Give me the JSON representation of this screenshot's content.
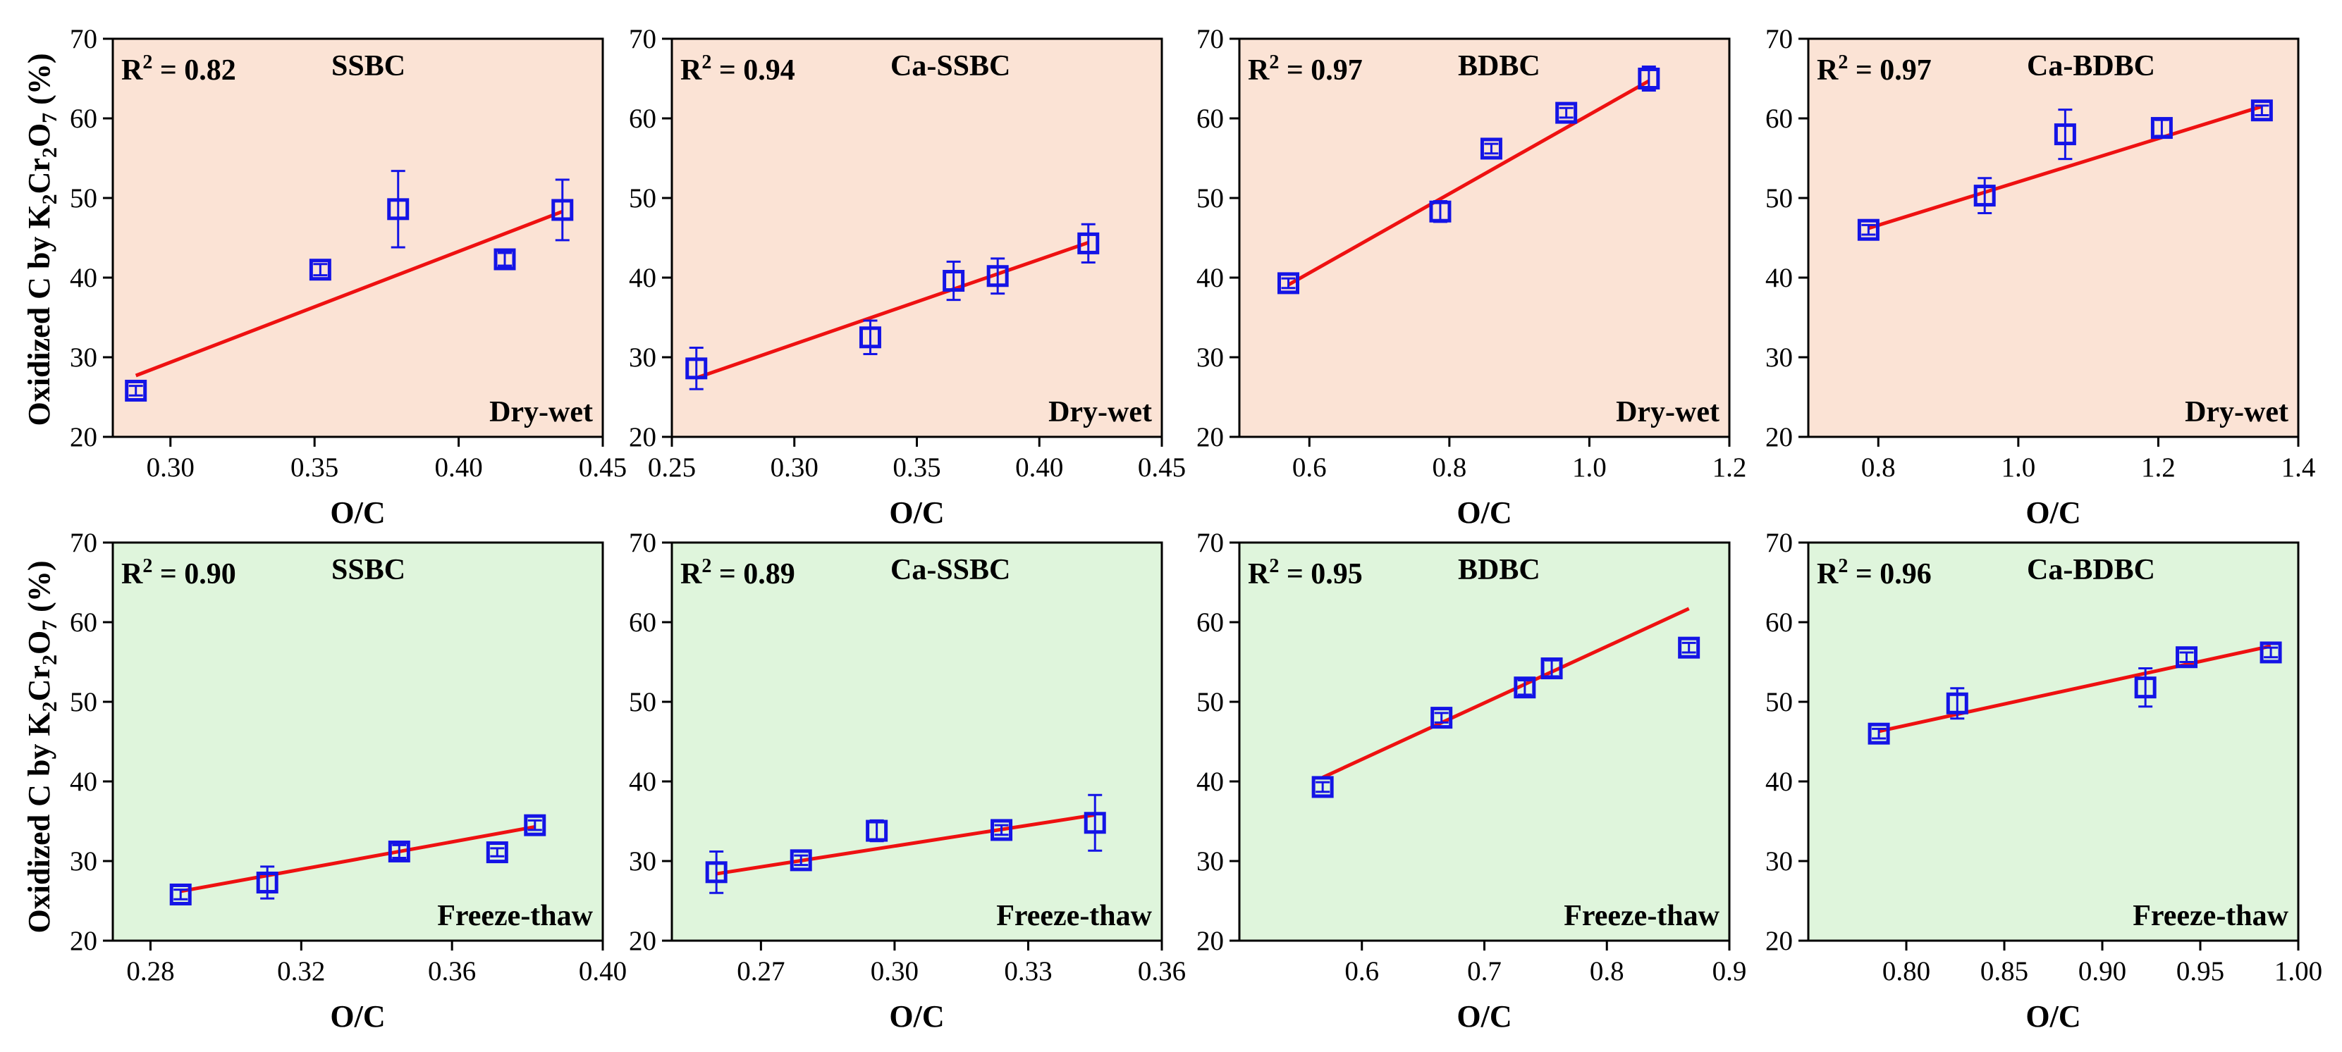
{
  "y_axis_label": {
    "prefix": "Oxidized C by K",
    "sub1": "2",
    "mid": "Cr",
    "sub2": "2",
    "mid2": "O",
    "sub3": "7",
    "suffix": " (%)"
  },
  "colors": {
    "dry_wet_bg": "#fbe3d5",
    "freeze_thaw_bg": "#dff5dc",
    "marker": "#1414e6",
    "fit_line": "#ee1111",
    "axis": "#000000"
  },
  "chart_data": [
    {
      "type": "scatter",
      "row": "dry-wet",
      "title": "SSBC",
      "r2_label": "R",
      "r2_value": " = 0.82",
      "condition": "Dry-wet",
      "xlabel": "O/C",
      "ylabel": "Oxidized C by K2Cr2O7 (%)",
      "xlim": [
        0.28,
        0.45
      ],
      "ylim": [
        20,
        70
      ],
      "xticks": [
        0.3,
        0.35,
        0.4,
        0.45
      ],
      "xtick_labels": [
        "0.30",
        "0.35",
        "0.40",
        "0.45"
      ],
      "yticks": [
        20,
        30,
        40,
        50,
        60,
        70
      ],
      "ytick_labels": [
        "20",
        "30",
        "40",
        "50",
        "60",
        "70"
      ],
      "x": [
        0.288,
        0.352,
        0.379,
        0.416,
        0.436
      ],
      "y": [
        25.8,
        41.0,
        48.6,
        42.3,
        48.5
      ],
      "yerr": [
        0.6,
        0.7,
        4.8,
        0.8,
        3.8
      ],
      "fit": {
        "x": [
          0.288,
          0.436
        ],
        "y": [
          27.7,
          48.3
        ]
      },
      "grid": false
    },
    {
      "type": "scatter",
      "row": "dry-wet",
      "title": "Ca-SSBC",
      "r2_label": "R",
      "r2_value": " = 0.94",
      "condition": "Dry-wet",
      "xlabel": "O/C",
      "xlim": [
        0.25,
        0.45
      ],
      "ylim": [
        20,
        70
      ],
      "xticks": [
        0.25,
        0.3,
        0.35,
        0.4,
        0.45
      ],
      "xtick_labels": [
        "0.25",
        "0.30",
        "0.35",
        "0.40",
        "0.45"
      ],
      "yticks": [
        20,
        30,
        40,
        50,
        60,
        70
      ],
      "ytick_labels": [
        "20",
        "30",
        "40",
        "50",
        "60",
        "70"
      ],
      "x": [
        0.26,
        0.331,
        0.365,
        0.383,
        0.42
      ],
      "y": [
        28.6,
        32.5,
        39.6,
        40.2,
        44.3
      ],
      "yerr": [
        2.6,
        2.1,
        2.4,
        2.2,
        2.4
      ],
      "fit": {
        "x": [
          0.26,
          0.42
        ],
        "y": [
          27.4,
          44.4
        ]
      },
      "grid": false
    },
    {
      "type": "scatter",
      "row": "dry-wet",
      "title": "BDBC",
      "r2_label": "R",
      "r2_value": " = 0.97",
      "condition": "Dry-wet",
      "xlabel": "O/C",
      "xlim": [
        0.5,
        1.2
      ],
      "ylim": [
        20,
        70
      ],
      "xticks": [
        0.6,
        0.8,
        1.0,
        1.2
      ],
      "xtick_labels": [
        "0.6",
        "0.8",
        "1.0",
        "1.2"
      ],
      "yticks": [
        20,
        30,
        40,
        50,
        60,
        70
      ],
      "ytick_labels": [
        "20",
        "30",
        "40",
        "50",
        "60",
        "70"
      ],
      "x": [
        0.57,
        0.787,
        0.86,
        0.967,
        1.085
      ],
      "y": [
        39.3,
        48.3,
        56.2,
        60.7,
        65.0
      ],
      "yerr": [
        0.6,
        1.3,
        0.6,
        0.6,
        1.5
      ],
      "fit": {
        "x": [
          0.57,
          1.085
        ],
        "y": [
          39.1,
          64.7
        ]
      },
      "grid": false
    },
    {
      "type": "scatter",
      "row": "dry-wet",
      "title": "Ca-BDBC",
      "r2_label": "R",
      "r2_value": " = 0.97",
      "condition": "Dry-wet",
      "xlabel": "O/C",
      "xlim": [
        0.7,
        1.4
      ],
      "ylim": [
        20,
        70
      ],
      "xticks": [
        0.8,
        1.0,
        1.2,
        1.4
      ],
      "xtick_labels": [
        "0.8",
        "1.0",
        "1.2",
        "1.4"
      ],
      "yticks": [
        20,
        30,
        40,
        50,
        60,
        70
      ],
      "ytick_labels": [
        "20",
        "30",
        "40",
        "50",
        "60",
        "70"
      ],
      "x": [
        0.786,
        0.952,
        1.067,
        1.205,
        1.348
      ],
      "y": [
        46.0,
        50.3,
        58.0,
        58.8,
        61.0
      ],
      "yerr": [
        0.6,
        2.2,
        3.1,
        1.0,
        0.6
      ],
      "fit": {
        "x": [
          0.786,
          1.348
        ],
        "y": [
          46.2,
          61.5
        ]
      },
      "grid": false
    },
    {
      "type": "scatter",
      "row": "freeze-thaw",
      "title": "SSBC",
      "r2_label": "R",
      "r2_value": " = 0.90",
      "condition": "Freeze-thaw",
      "xlabel": "O/C",
      "xlim": [
        0.27,
        0.4
      ],
      "ylim": [
        20,
        70
      ],
      "xticks": [
        0.28,
        0.32,
        0.36,
        0.4
      ],
      "xtick_labels": [
        "0.28",
        "0.32",
        "0.36",
        "0.40"
      ],
      "yticks": [
        20,
        30,
        40,
        50,
        60,
        70
      ],
      "ytick_labels": [
        "20",
        "30",
        "40",
        "50",
        "60",
        "70"
      ],
      "x": [
        0.288,
        0.311,
        0.346,
        0.372,
        0.382
      ],
      "y": [
        25.8,
        27.3,
        31.2,
        31.1,
        34.5
      ],
      "yerr": [
        0.6,
        2.0,
        0.8,
        0.5,
        0.6
      ],
      "fit": {
        "x": [
          0.288,
          0.382
        ],
        "y": [
          26.2,
          34.3
        ]
      },
      "grid": false
    },
    {
      "type": "scatter",
      "row": "freeze-thaw",
      "title": "Ca-SSBC",
      "r2_label": "R",
      "r2_value": " = 0.89",
      "condition": "Freeze-thaw",
      "xlabel": "O/C",
      "xlim": [
        0.25,
        0.36
      ],
      "ylim": [
        20,
        70
      ],
      "xticks": [
        0.27,
        0.3,
        0.33,
        0.36
      ],
      "xtick_labels": [
        "0.27",
        "0.30",
        "0.33",
        "0.36"
      ],
      "yticks": [
        20,
        30,
        40,
        50,
        60,
        70
      ],
      "ytick_labels": [
        "20",
        "30",
        "40",
        "50",
        "60",
        "70"
      ],
      "x": [
        0.26,
        0.279,
        0.296,
        0.324,
        0.345
      ],
      "y": [
        28.6,
        30.1,
        33.8,
        33.9,
        34.8
      ],
      "yerr": [
        2.6,
        0.6,
        1.3,
        0.6,
        3.5
      ],
      "fit": {
        "x": [
          0.26,
          0.345
        ],
        "y": [
          28.4,
          35.8
        ]
      },
      "grid": false
    },
    {
      "type": "scatter",
      "row": "freeze-thaw",
      "title": "BDBC",
      "r2_label": "R",
      "r2_value": " = 0.95",
      "condition": "Freeze-thaw",
      "xlabel": "O/C",
      "xlim": [
        0.5,
        0.9
      ],
      "ylim": [
        20,
        70
      ],
      "xticks": [
        0.6,
        0.7,
        0.8,
        0.9
      ],
      "xtick_labels": [
        "0.6",
        "0.7",
        "0.8",
        "0.9"
      ],
      "yticks": [
        20,
        30,
        40,
        50,
        60,
        70
      ],
      "ytick_labels": [
        "20",
        "30",
        "40",
        "50",
        "60",
        "70"
      ],
      "x": [
        0.568,
        0.665,
        0.733,
        0.755,
        0.867
      ],
      "y": [
        39.3,
        48.0,
        51.8,
        54.2,
        56.8
      ],
      "yerr": [
        0.6,
        0.6,
        0.9,
        1.0,
        0.6
      ],
      "fit": {
        "x": [
          0.568,
          0.867
        ],
        "y": [
          40.5,
          61.7
        ]
      },
      "grid": false
    },
    {
      "type": "scatter",
      "row": "freeze-thaw",
      "title": "Ca-BDBC",
      "r2_label": "R",
      "r2_value": " = 0.96",
      "condition": "Freeze-thaw",
      "xlabel": "O/C",
      "xlim": [
        0.75,
        1.0
      ],
      "ylim": [
        20,
        70
      ],
      "xticks": [
        0.8,
        0.85,
        0.9,
        0.95,
        1.0
      ],
      "xtick_labels": [
        "0.80",
        "0.85",
        "0.90",
        "0.95",
        "1.00"
      ],
      "yticks": [
        20,
        30,
        40,
        50,
        60,
        70
      ],
      "ytick_labels": [
        "20",
        "30",
        "40",
        "50",
        "60",
        "70"
      ],
      "x": [
        0.786,
        0.826,
        0.922,
        0.943,
        0.986
      ],
      "y": [
        46.0,
        49.8,
        51.8,
        55.6,
        56.2
      ],
      "yerr": [
        0.6,
        1.9,
        2.4,
        0.6,
        0.6
      ],
      "fit": {
        "x": [
          0.786,
          0.986
        ],
        "y": [
          46.3,
          57.0
        ]
      },
      "grid": false
    }
  ]
}
